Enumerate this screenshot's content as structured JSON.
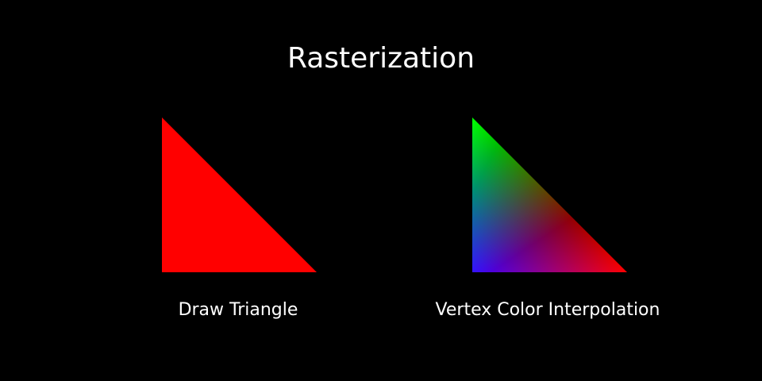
{
  "title": "Rasterization",
  "panels": [
    {
      "caption": "Draw Triangle",
      "fill_color": "#ff0000"
    },
    {
      "caption": "Vertex Color Interpolation",
      "vertex_colors": {
        "top": "#00ff00",
        "bottom_left": "#0000ff",
        "bottom_right": "#ff0000"
      }
    }
  ]
}
